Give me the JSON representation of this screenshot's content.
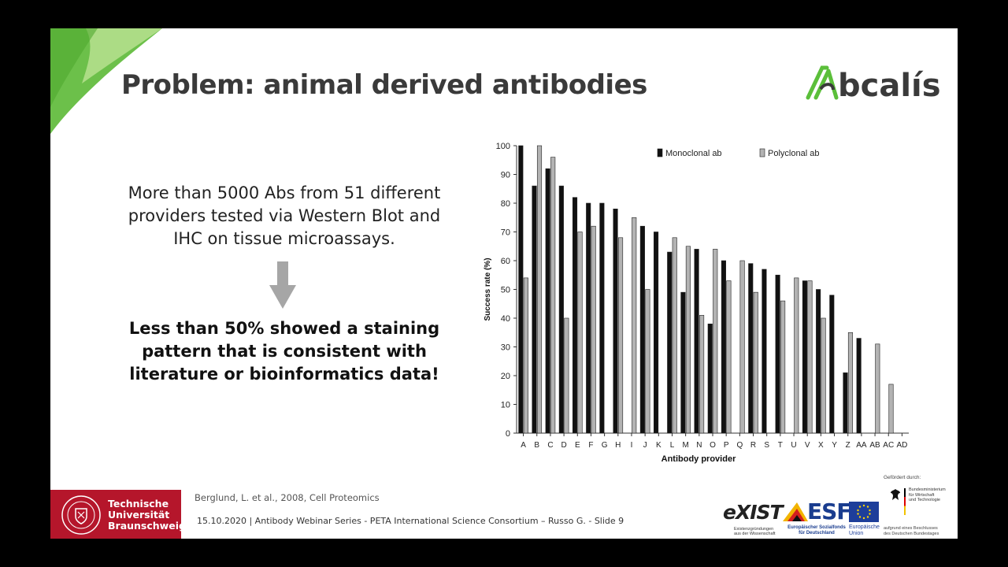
{
  "slide": {
    "title": "Problem: animal derived antibodies",
    "logo_text": "Abcalis",
    "body_lines": [
      "More than 5000 Abs from 51 different",
      "providers tested via Western Blot and",
      "IHC on tissue microassays."
    ],
    "bold_lines": [
      "Less than 50% showed a staining",
      "pattern that is consistent with",
      "literature or bioinformatics data!"
    ],
    "colors": {
      "title": "#3a3a3a",
      "accent_green": "#6cc04a",
      "tu_red": "#b5162b",
      "arrow": "#a6a6a6"
    }
  },
  "footer": {
    "tu_lines": [
      "Technische",
      "Universität",
      "Braunschweig"
    ],
    "citation": "Berglund, L.  et al., 2008, Cell Proteomics",
    "footer_line": "15.10.2020 | Antibody Webinar Series -  PETA International Science Consortium – Russo G. - Slide 9",
    "gefoerdert": "Gefördert durch:",
    "exist": "eXIST",
    "exist_sub": [
      "Existenzgründungen",
      "aus der Wissenschaft"
    ],
    "esf": "ESF",
    "esf_sub": [
      "Europäischer Sozialfonds",
      "für Deutschland"
    ],
    "eu_lines": [
      "Europäische",
      "Union"
    ],
    "bmwi_lines": [
      "Bundesministerium",
      "für Wirtschaft",
      "und Technologie"
    ],
    "bmwi_sub": [
      "aufgrund eines Beschlusses",
      "des Deutschen Bundestages"
    ]
  },
  "chart_data": {
    "type": "bar",
    "xlabel": "Antibody provider",
    "ylabel": "Success rate (%)",
    "ylim": [
      0,
      100
    ],
    "yticks": [
      0,
      10,
      20,
      30,
      40,
      50,
      60,
      70,
      80,
      90,
      100
    ],
    "categories": [
      "A",
      "B",
      "C",
      "D",
      "E",
      "F",
      "G",
      "H",
      "I",
      "J",
      "K",
      "L",
      "M",
      "N",
      "O",
      "P",
      "Q",
      "R",
      "S",
      "T",
      "U",
      "V",
      "X",
      "Y",
      "Z",
      "AA",
      "AB",
      "AC",
      "AD"
    ],
    "legend_position": "top",
    "series": [
      {
        "name": "Monoclonal ab",
        "color": "#111111",
        "values": [
          100,
          86,
          92,
          86,
          82,
          80,
          80,
          78,
          null,
          72,
          70,
          63,
          49,
          64,
          38,
          60,
          null,
          59,
          57,
          55,
          null,
          53,
          50,
          48,
          21,
          33,
          null,
          null,
          null
        ]
      },
      {
        "name": "Polyclonal ab",
        "color": "#b3b3b3",
        "values": [
          54,
          100,
          96,
          40,
          70,
          72,
          null,
          68,
          75,
          50,
          null,
          68,
          65,
          41,
          64,
          53,
          60,
          49,
          null,
          46,
          54,
          53,
          40,
          null,
          35,
          null,
          31,
          17,
          null
        ]
      }
    ]
  }
}
